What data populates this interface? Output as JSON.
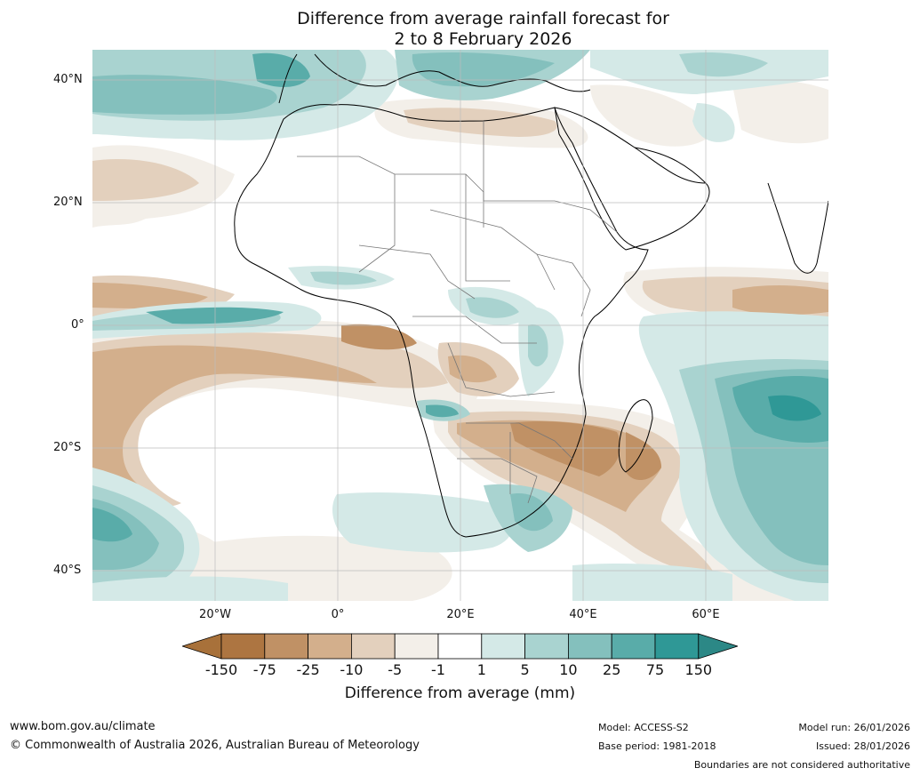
{
  "title": {
    "line1": "Difference from average rainfall forecast for",
    "line2": "2 to 8 February 2026"
  },
  "axes": {
    "lat_labels": [
      "40°N",
      "20°N",
      "0°",
      "20°S",
      "40°S"
    ],
    "lon_labels": [
      "20°W",
      "0°",
      "20°E",
      "40°E",
      "60°E"
    ]
  },
  "legend": {
    "title": "Difference from average (mm)",
    "ticks": [
      "-150",
      "-75",
      "-25",
      "-10",
      "-5",
      "-1",
      "1",
      "5",
      "10",
      "25",
      "75",
      "150"
    ],
    "colors": [
      "#a8713a",
      "#ad7541",
      "#c09165",
      "#d3af8c",
      "#e3d0bd",
      "#f3efe9",
      "#ffffff",
      "#d4e9e7",
      "#a9d3d0",
      "#84c0bd",
      "#59aca9",
      "#2f9896",
      "#2c8886"
    ]
  },
  "footer": {
    "website": "www.bom.gov.au/climate",
    "copyright": "© Commonwealth of Australia 2026, Australian Bureau of Meteorology",
    "model": "Model: ACCESS-S2",
    "base_period": "Base period: 1981-2018",
    "model_run": "Model run: 26/01/2026",
    "issued": "Issued: 28/01/2026",
    "disclaimer": "Boundaries are not considered authoritative"
  },
  "map": {
    "colors": {
      "ocean_bg": "#ffffff",
      "grid": "#bdbdbd",
      "coast": "#000000",
      "border": "#777777"
    }
  }
}
